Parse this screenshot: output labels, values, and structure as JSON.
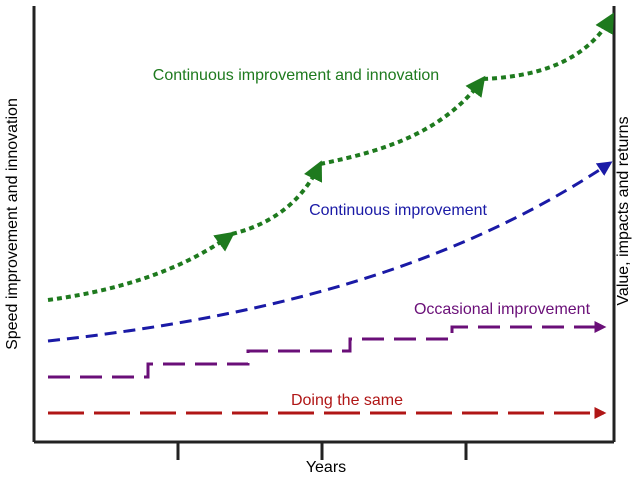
{
  "axes": {
    "x_title": "Years",
    "y_left_title": "Speed improvement and innovation",
    "y_right_title": "Value, impacts and returns"
  },
  "curves": {
    "innovation": {
      "label": "Continuous improvement and innovation",
      "color": "#1e7a1e"
    },
    "continuous": {
      "label": "Continuous improvement",
      "color": "#1a1aa6"
    },
    "occasional": {
      "label": "Occasional improvement",
      "color": "#6a0f78"
    },
    "same": {
      "label": "Doing the same",
      "color": "#b01616"
    }
  },
  "colors": {
    "axis": "#222222",
    "background": "#ffffff"
  },
  "icons": [
    "arrowhead-icon"
  ]
}
